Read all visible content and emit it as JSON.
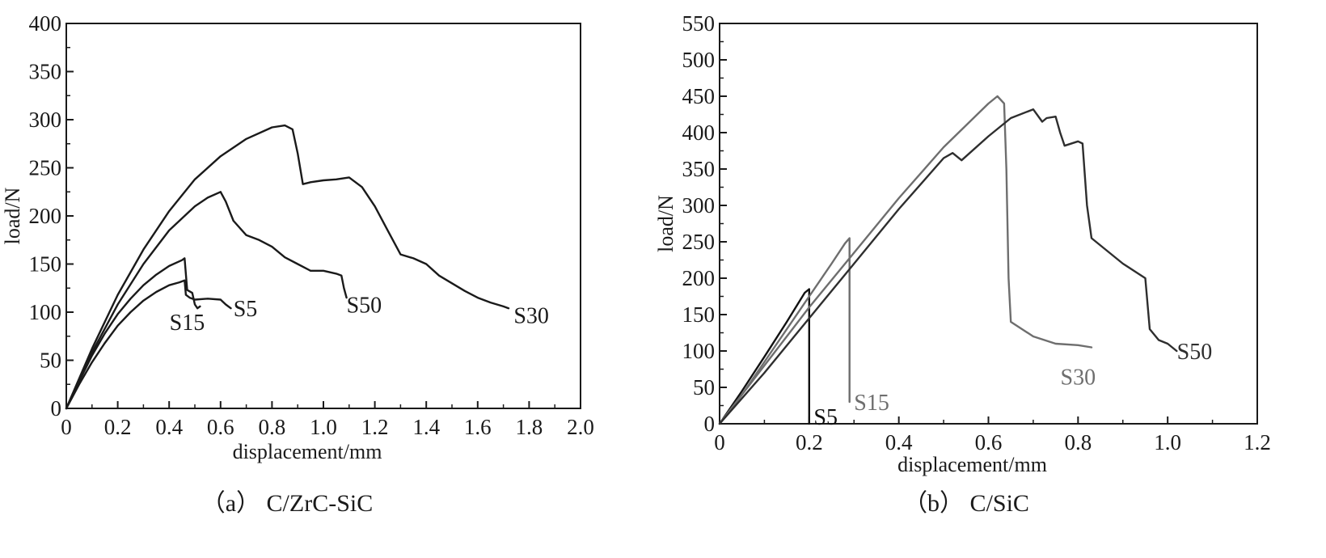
{
  "chart_data": [
    {
      "type": "line",
      "caption": "（a） C/ZrC-SiC",
      "xlabel": "displacement/mm",
      "ylabel": "load/N",
      "xlim": [
        0,
        2.0
      ],
      "ylim": [
        0,
        400
      ],
      "xticks": [
        0,
        0.2,
        0.4,
        0.6,
        0.8,
        1.0,
        1.2,
        1.4,
        1.6,
        1.8,
        2.0
      ],
      "xtick_labels": [
        "0",
        "0.2",
        "0.4",
        "0.6",
        "0.8",
        "1.0",
        "1.2",
        "1.4",
        "1.6",
        "1.8",
        "2.0"
      ],
      "yticks": [
        0,
        50,
        100,
        150,
        200,
        250,
        300,
        350,
        400
      ],
      "ytick_labels": [
        "0",
        "50",
        "100",
        "150",
        "200",
        "250",
        "300",
        "350",
        "400"
      ],
      "grid": false,
      "series": [
        {
          "name": "S5",
          "color": "#1a1a1a",
          "label_at": [
            0.65,
            104
          ],
          "label_anchor": "start",
          "x": [
            0,
            0.05,
            0.1,
            0.15,
            0.2,
            0.25,
            0.3,
            0.35,
            0.4,
            0.44,
            0.46,
            0.465,
            0.48,
            0.5,
            0.55,
            0.6,
            0.62,
            0.64
          ],
          "y": [
            0,
            25,
            48,
            68,
            86,
            100,
            112,
            121,
            128,
            131,
            133,
            118,
            115,
            113,
            114,
            113,
            108,
            104
          ]
        },
        {
          "name": "S15",
          "color": "#1a1a1a",
          "label_at": [
            0.47,
            90
          ],
          "label_anchor": "middle",
          "x": [
            0,
            0.05,
            0.1,
            0.15,
            0.2,
            0.25,
            0.3,
            0.35,
            0.4,
            0.45,
            0.46,
            0.47,
            0.49,
            0.5,
            0.51,
            0.52
          ],
          "y": [
            0,
            28,
            55,
            78,
            98,
            114,
            128,
            139,
            148,
            154,
            156,
            123,
            120,
            108,
            104,
            106
          ]
        },
        {
          "name": "S50",
          "color": "#1a1a1a",
          "label_at": [
            1.09,
            108
          ],
          "label_anchor": "start",
          "x": [
            0,
            0.1,
            0.2,
            0.3,
            0.4,
            0.5,
            0.55,
            0.6,
            0.62,
            0.65,
            0.7,
            0.75,
            0.8,
            0.85,
            0.9,
            0.95,
            1.0,
            1.05,
            1.07,
            1.08,
            1.09
          ],
          "y": [
            0,
            58,
            108,
            150,
            185,
            210,
            219,
            225,
            215,
            195,
            180,
            175,
            168,
            157,
            150,
            143,
            143,
            140,
            138,
            125,
            115
          ]
        },
        {
          "name": "S30",
          "color": "#1a1a1a",
          "label_at": [
            1.74,
            97
          ],
          "label_anchor": "start",
          "x": [
            0,
            0.1,
            0.2,
            0.3,
            0.4,
            0.5,
            0.6,
            0.7,
            0.8,
            0.85,
            0.88,
            0.9,
            0.92,
            0.95,
            1.0,
            1.05,
            1.1,
            1.15,
            1.2,
            1.25,
            1.3,
            1.35,
            1.4,
            1.45,
            1.5,
            1.55,
            1.6,
            1.65,
            1.7,
            1.72
          ],
          "y": [
            0,
            62,
            118,
            165,
            205,
            238,
            262,
            280,
            292,
            294,
            290,
            265,
            233,
            235,
            237,
            238,
            240,
            230,
            210,
            185,
            160,
            156,
            150,
            138,
            130,
            122,
            115,
            110,
            106,
            104
          ]
        }
      ]
    },
    {
      "type": "line",
      "caption": "（b） C/SiC",
      "xlabel": "displacement/mm",
      "ylabel": "load/N",
      "xlim": [
        0,
        1.2
      ],
      "ylim": [
        0,
        550
      ],
      "xticks": [
        0,
        0.2,
        0.4,
        0.6,
        0.8,
        1.0,
        1.2
      ],
      "xtick_labels": [
        "0",
        "0.2",
        "0.4",
        "0.6",
        "0.8",
        "1.0",
        "1.2"
      ],
      "yticks": [
        0,
        50,
        100,
        150,
        200,
        250,
        300,
        350,
        400,
        450,
        500,
        550
      ],
      "ytick_labels": [
        "0",
        "50",
        "100",
        "150",
        "200",
        "250",
        "300",
        "350",
        "400",
        "450",
        "500",
        "550"
      ],
      "grid": false,
      "series": [
        {
          "name": "S5",
          "color": "#111111",
          "label_at": [
            0.21,
            10
          ],
          "label_anchor": "start",
          "x": [
            0,
            0.05,
            0.1,
            0.15,
            0.19,
            0.2,
            0.2,
            0.2
          ],
          "y": [
            0,
            45,
            92,
            140,
            180,
            185,
            150,
            0
          ]
        },
        {
          "name": "S15",
          "color": "#6e6e6e",
          "label_at": [
            0.3,
            30
          ],
          "label_anchor": "start",
          "x": [
            0,
            0.05,
            0.1,
            0.15,
            0.2,
            0.25,
            0.28,
            0.29,
            0.29,
            0.29
          ],
          "y": [
            0,
            40,
            85,
            130,
            175,
            220,
            248,
            255,
            150,
            30
          ]
        },
        {
          "name": "S30",
          "color": "#6e6e6e",
          "label_at": [
            0.8,
            65
          ],
          "label_anchor": "middle",
          "x": [
            0,
            0.1,
            0.2,
            0.3,
            0.4,
            0.5,
            0.6,
            0.62,
            0.635,
            0.64,
            0.645,
            0.65,
            0.7,
            0.75,
            0.8,
            0.83
          ],
          "y": [
            0,
            80,
            160,
            235,
            310,
            380,
            440,
            450,
            440,
            350,
            200,
            140,
            120,
            110,
            108,
            105
          ]
        },
        {
          "name": "S50",
          "color": "#2e2e2e",
          "label_at": [
            1.06,
            100
          ],
          "label_anchor": "middle",
          "x": [
            0,
            0.1,
            0.2,
            0.3,
            0.4,
            0.5,
            0.52,
            0.54,
            0.6,
            0.65,
            0.7,
            0.72,
            0.73,
            0.75,
            0.76,
            0.77,
            0.8,
            0.81,
            0.82,
            0.83,
            0.9,
            0.95,
            0.96,
            0.98,
            1.0,
            1.02
          ],
          "y": [
            0,
            70,
            145,
            220,
            295,
            365,
            372,
            362,
            395,
            420,
            432,
            415,
            420,
            422,
            400,
            382,
            388,
            385,
            300,
            255,
            220,
            200,
            130,
            115,
            110,
            100
          ]
        }
      ]
    }
  ]
}
